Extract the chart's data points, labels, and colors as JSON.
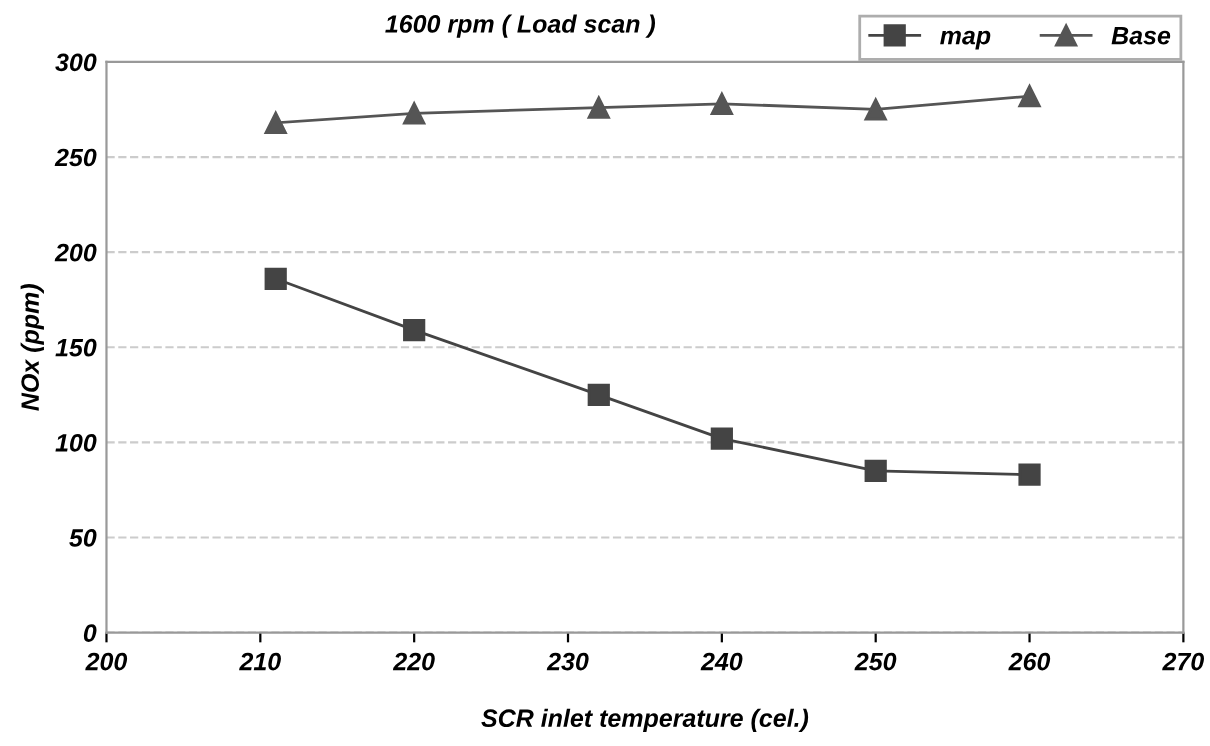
{
  "chart_data": {
    "type": "line",
    "title": "1600 rpm ( Load scan )",
    "xlabel": "SCR inlet temperature (cel.)",
    "ylabel": "NOx (ppm)",
    "x": [
      211,
      220,
      232,
      240,
      250,
      260
    ],
    "series": [
      {
        "name": "map",
        "color": "#444444",
        "marker": "square",
        "values": [
          186,
          159,
          125,
          102,
          85,
          83
        ]
      },
      {
        "name": "Base",
        "color": "#555555",
        "marker": "triangle",
        "values": [
          268,
          273,
          276,
          278,
          275,
          282
        ]
      }
    ],
    "xlim": [
      200,
      270
    ],
    "xticks": [
      200,
      210,
      220,
      230,
      240,
      250,
      260,
      270
    ],
    "ylim": [
      0,
      300
    ],
    "yticks": [
      0,
      50,
      100,
      150,
      200,
      250,
      300
    ],
    "grid": "y",
    "legend": "top right"
  }
}
